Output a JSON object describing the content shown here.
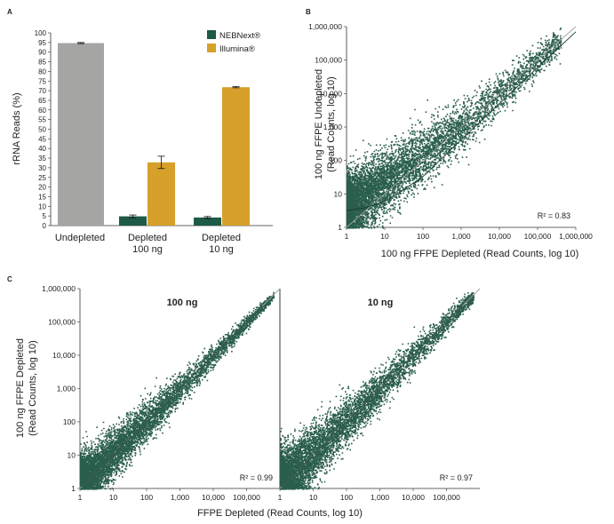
{
  "figure": {
    "panel_labels": [
      "A",
      "B",
      "C"
    ]
  },
  "colors": {
    "nebnext": "#1e5a48",
    "illumina": "#d6a02a",
    "undepleted": "#a5a5a3",
    "scatter": "#2a5e4c",
    "axis": "#333333",
    "diagonal": "#a0a0a0"
  },
  "chart_data": [
    {
      "id": "A",
      "type": "bar",
      "ylabel": "rRNA Reads (%)",
      "xlabel": "",
      "ylim": [
        0,
        100
      ],
      "yticks": [
        0,
        5,
        10,
        15,
        20,
        25,
        30,
        35,
        40,
        45,
        50,
        55,
        60,
        65,
        70,
        75,
        80,
        85,
        90,
        95,
        100
      ],
      "ytick_labels": [
        "0",
        "5",
        "10",
        "15",
        "20",
        "25",
        "30",
        "35",
        "40",
        "45",
        "50",
        "55",
        "60",
        "65",
        "70",
        "75",
        "80",
        "85",
        "90",
        "95",
        "100"
      ],
      "groups": [
        {
          "label": [
            "Undepleted"
          ],
          "bars": [
            {
              "series": "Undepleted",
              "value": 94.7,
              "error": 0.3
            }
          ]
        },
        {
          "label": [
            "Depleted",
            "100 ng"
          ],
          "bars": [
            {
              "series": "NEBNext®",
              "value": 4.8,
              "error": 0.7
            },
            {
              "series": "Illumina®",
              "value": 32.8,
              "error": 3.2
            }
          ]
        },
        {
          "label": [
            "Depleted",
            "10 ng"
          ],
          "bars": [
            {
              "series": "NEBNext®",
              "value": 4.2,
              "error": 0.5
            },
            {
              "series": "Illumina®",
              "value": 71.8,
              "error": 0.3
            }
          ]
        }
      ],
      "legend": [
        {
          "name": "NEBNext®",
          "color_key": "nebnext"
        },
        {
          "name": "Illumina®",
          "color_key": "illumina"
        }
      ],
      "legend_position": "top-right"
    },
    {
      "id": "B",
      "type": "scatter",
      "xlabel": "100 ng FFPE Depleted (Read Counts, log 10)",
      "ylabel": [
        "100 ng FFPE Undepleted",
        "(Read Counts, log 10)"
      ],
      "xscale": "log",
      "yscale": "log",
      "xlim": [
        1,
        1000000
      ],
      "ylim": [
        1,
        1000000
      ],
      "xticks": [
        1,
        10,
        100,
        1000,
        10000,
        100000,
        1000000
      ],
      "xtick_labels": [
        "1",
        "10",
        "100",
        "1,000",
        "10,000",
        "100,000",
        "1,000,000"
      ],
      "yticks": [
        1,
        10,
        100,
        1000,
        10000,
        100000,
        1000000
      ],
      "ytick_labels": [
        "1",
        "10",
        "100",
        "1,000",
        "10,000",
        "100,000",
        "1,000,000"
      ],
      "annotation": "R² = 0.83",
      "reference_line": "y = x",
      "fit_curve": [
        [
          1,
          3.2
        ],
        [
          3,
          3.8
        ],
        [
          10,
          6
        ],
        [
          30,
          13
        ],
        [
          100,
          33
        ],
        [
          300,
          110
        ],
        [
          1000,
          420
        ],
        [
          10000,
          5000
        ],
        [
          100000,
          60000
        ],
        [
          1000000,
          700000
        ]
      ]
    },
    {
      "id": "C1",
      "type": "scatter",
      "title": "100 ng",
      "xscale": "log",
      "yscale": "log",
      "xlim": [
        1,
        1000000
      ],
      "ylim": [
        1,
        1000000
      ],
      "xticks": [
        1,
        10,
        100,
        1000,
        10000,
        100000
      ],
      "xtick_labels": [
        "1",
        "10",
        "100",
        "1,000",
        "10,000",
        "100,000"
      ],
      "yticks": [
        1,
        10,
        100,
        1000,
        10000,
        100000,
        1000000
      ],
      "ytick_labels": [
        "1",
        "10",
        "100",
        "1,000",
        "10,000",
        "100,000",
        "1,000,000"
      ],
      "annotation": "R² = 0.99",
      "reference_line": "y = x"
    },
    {
      "id": "C2",
      "type": "scatter",
      "title": "10 ng",
      "xscale": "log",
      "yscale": "log",
      "xlim": [
        1,
        1000000
      ],
      "ylim": [
        1,
        1000000
      ],
      "xticks": [
        1,
        10,
        100,
        1000,
        10000,
        100000
      ],
      "xtick_labels": [
        "1",
        "10",
        "100",
        "1,000",
        "10,000",
        "100,000"
      ],
      "annotation": "R² = 0.97",
      "reference_line": "y = x"
    }
  ],
  "panel_c": {
    "xlabel": "FFPE Depleted (Read Counts, log 10)",
    "ylabel": [
      "100 ng FFPE Depleted",
      "(Read Counts, log 10)"
    ]
  }
}
